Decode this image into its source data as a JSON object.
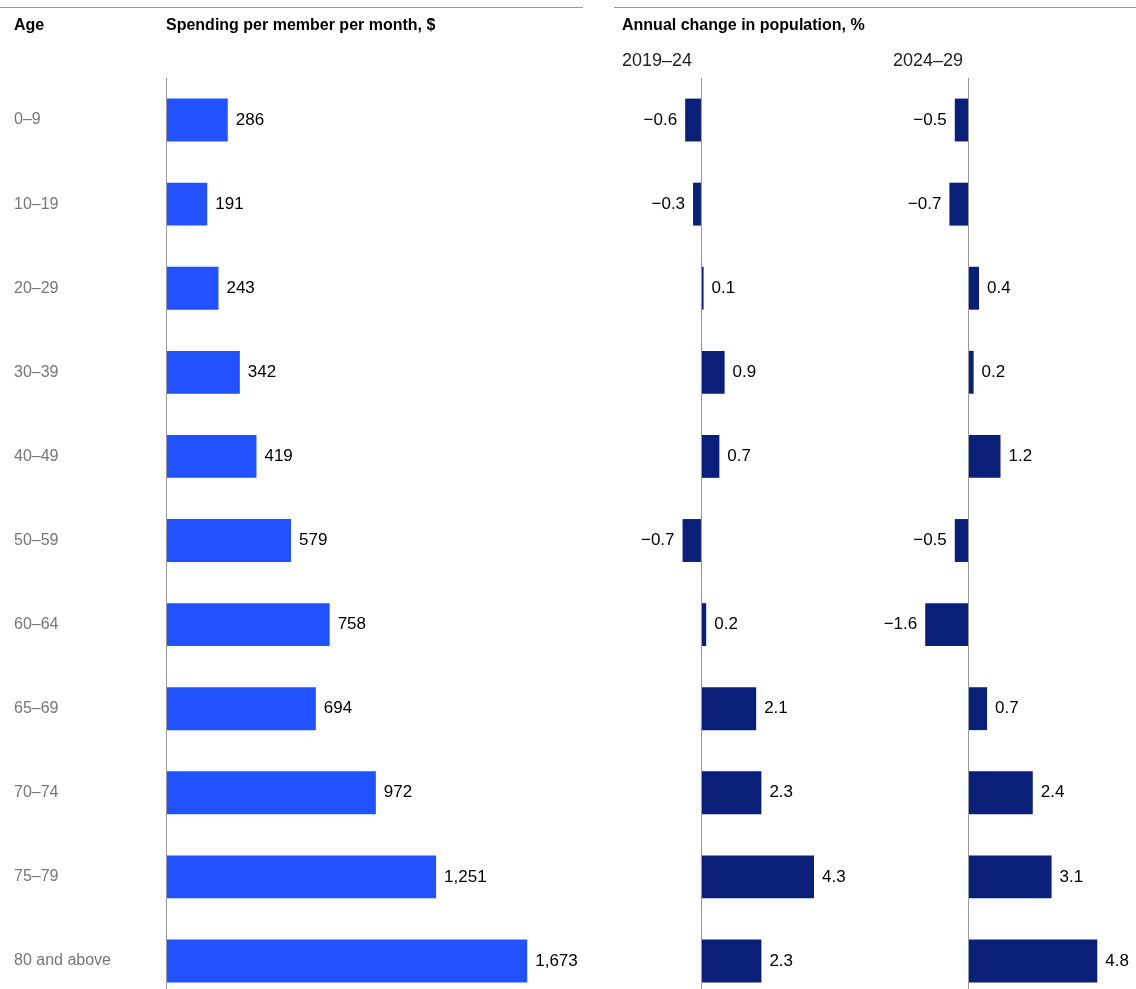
{
  "chart_data": [
    {
      "type": "bar",
      "orientation": "horizontal",
      "title": "Spending per member per month, $",
      "ylabel": "Age",
      "categories": [
        "0–9",
        "10–19",
        "20–29",
        "30–39",
        "40–49",
        "50–59",
        "60–64",
        "65–69",
        "70–74",
        "75–79",
        "80 and above"
      ],
      "values": [
        286,
        191,
        243,
        342,
        419,
        579,
        758,
        694,
        972,
        1251,
        1673
      ],
      "color": "#2251ff",
      "value_labels": [
        "286",
        "191",
        "243",
        "342",
        "419",
        "579",
        "758",
        "694",
        "972",
        "1,251",
        "1,673"
      ],
      "grid": false,
      "legend": false
    },
    {
      "type": "bar",
      "orientation": "horizontal",
      "title": "Annual change in population, %",
      "subtitle": "2019–24",
      "categories": [
        null,
        null,
        null,
        null,
        null,
        null,
        null,
        null,
        null,
        null,
        null
      ],
      "values": [
        -0.6,
        -0.3,
        0.1,
        0.9,
        0.7,
        -0.7,
        0.2,
        2.1,
        2.3,
        4.3,
        2.3
      ],
      "color": "#0a1f78",
      "value_labels": [
        "−0.6",
        "−0.3",
        "0.1",
        "0.9",
        "0.7",
        "−0.7",
        "0.2",
        "2.1",
        "2.3",
        "4.3",
        "2.3"
      ],
      "tick_labels": false,
      "grid": false,
      "legend": false
    },
    {
      "type": "bar",
      "orientation": "horizontal",
      "subtitle": "2024–29",
      "categories": [
        null,
        null,
        null,
        null,
        null,
        null,
        null,
        null,
        null,
        null,
        null
      ],
      "values": [
        -0.5,
        -0.7,
        0.4,
        0.2,
        1.2,
        -0.5,
        -1.6,
        0.7,
        2.4,
        3.1,
        4.8
      ],
      "color": "#0a1f78",
      "value_labels": [
        "−0.5",
        "−0.7",
        "0.4",
        "0.2",
        "1.2",
        "−0.5",
        "−1.6",
        "0.7",
        "2.4",
        "3.1",
        "4.8"
      ],
      "tick_labels": false,
      "grid": false,
      "legend": false
    }
  ]
}
